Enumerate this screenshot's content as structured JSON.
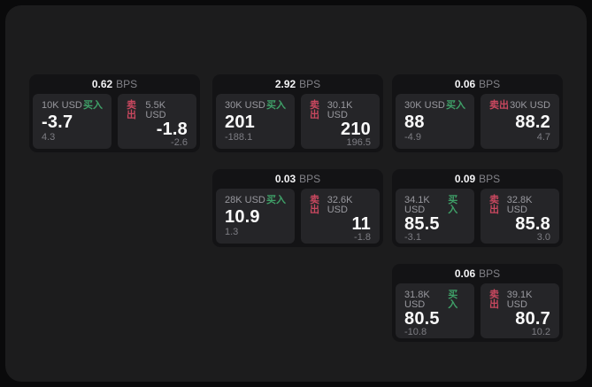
{
  "labels": {
    "bps_unit": "BPS",
    "buy": "买入",
    "sell": "卖出"
  },
  "colors": {
    "buy_green": "#3fa068",
    "sell_red": "#c9485f",
    "panel_bg": "#1c1c1d",
    "card_bg": "#131315",
    "tile_bg": "#252528"
  },
  "cards": [
    {
      "bps": "0.62",
      "row": 0,
      "col": 0,
      "buy": {
        "size": "10K USD",
        "price": "-3.7",
        "delta": "4.3"
      },
      "sell": {
        "size": "5.5K USD",
        "price": "-1.8",
        "delta": "-2.6"
      }
    },
    {
      "bps": "2.92",
      "row": 0,
      "col": 1,
      "buy": {
        "size": "30K USD",
        "price": "201",
        "delta": "-188.1"
      },
      "sell": {
        "size": "30.1K USD",
        "price": "210",
        "delta": "196.5"
      }
    },
    {
      "bps": "0.06",
      "row": 0,
      "col": 2,
      "buy": {
        "size": "30K USD",
        "price": "88",
        "delta": "-4.9"
      },
      "sell": {
        "size": "30K USD",
        "price": "88.2",
        "delta": "4.7"
      }
    },
    {
      "bps": "0.03",
      "row": 1,
      "col": 1,
      "buy": {
        "size": "28K USD",
        "price": "10.9",
        "delta": "1.3"
      },
      "sell": {
        "size": "32.6K USD",
        "price": "11",
        "delta": "-1.8"
      }
    },
    {
      "bps": "0.09",
      "row": 1,
      "col": 2,
      "buy": {
        "size": "34.1K USD",
        "price": "85.5",
        "delta": "-3.1"
      },
      "sell": {
        "size": "32.8K USD",
        "price": "85.8",
        "delta": "3.0"
      }
    },
    {
      "bps": "0.06",
      "row": 2,
      "col": 2,
      "buy": {
        "size": "31.8K USD",
        "price": "80.5",
        "delta": "-10.8"
      },
      "sell": {
        "size": "39.1K USD",
        "price": "80.7",
        "delta": "10.2"
      }
    }
  ]
}
